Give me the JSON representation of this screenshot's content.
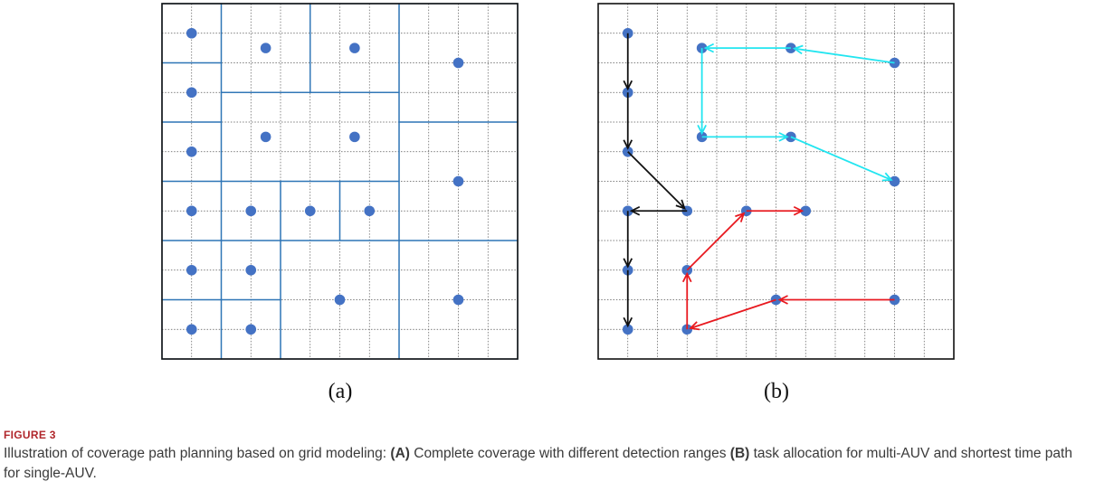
{
  "figure": {
    "panel_a_label": "(a)",
    "panel_b_label": "(b)",
    "fig_number": "FIGURE 3",
    "caption_intro": "Illustration of coverage path planning based on grid modeling: ",
    "caption_a_key": "(A)",
    "caption_a_text": " Complete coverage with different detection ranges ",
    "caption_b_key": "(B)",
    "caption_b_text": " task allocation for multi-AUV and shortest time path for single-AUV."
  },
  "colors": {
    "node": "#4472c4",
    "region_border": "#2e75b6",
    "grid_line": "#555555",
    "path_black": "#111111",
    "path_cyan": "#22e5f0",
    "path_red": "#e8191f"
  },
  "grid": {
    "cols": 12,
    "rows": 12
  },
  "panel_a": {
    "nodes": [
      [
        1,
        1
      ],
      [
        3.5,
        1.5
      ],
      [
        6.5,
        1.5
      ],
      [
        10,
        2
      ],
      [
        1,
        3
      ],
      [
        3.5,
        4.5
      ],
      [
        6.5,
        4.5
      ],
      [
        1,
        5
      ],
      [
        10,
        6
      ],
      [
        1,
        7
      ],
      [
        3,
        7
      ],
      [
        5,
        7
      ],
      [
        7,
        7
      ],
      [
        1,
        9
      ],
      [
        3,
        9
      ],
      [
        6,
        10
      ],
      [
        10,
        10
      ],
      [
        1,
        11
      ],
      [
        3,
        11
      ]
    ],
    "regions": [
      [
        0,
        0,
        2,
        2
      ],
      [
        2,
        0,
        5,
        3
      ],
      [
        5,
        0,
        8,
        3
      ],
      [
        8,
        0,
        12,
        4
      ],
      [
        0,
        2,
        2,
        4
      ],
      [
        2,
        3,
        8,
        6
      ],
      [
        8,
        4,
        12,
        8
      ],
      [
        0,
        4,
        2,
        6
      ],
      [
        0,
        6,
        2,
        8
      ],
      [
        2,
        6,
        4,
        8
      ],
      [
        4,
        6,
        6,
        8
      ],
      [
        6,
        6,
        8,
        8
      ],
      [
        0,
        8,
        2,
        10
      ],
      [
        2,
        8,
        4,
        10
      ],
      [
        0,
        10,
        2,
        12
      ],
      [
        2,
        10,
        4,
        12
      ],
      [
        4,
        8,
        8,
        12
      ],
      [
        8,
        8,
        12,
        12
      ]
    ]
  },
  "panel_b": {
    "paths": [
      {
        "color": "path_black",
        "points": [
          [
            1,
            1
          ],
          [
            1,
            3
          ],
          [
            1,
            5
          ],
          [
            3,
            7
          ],
          [
            1,
            7
          ],
          [
            1,
            9
          ],
          [
            1,
            11
          ]
        ]
      },
      {
        "color": "path_cyan",
        "points": [
          [
            10,
            2
          ],
          [
            6.5,
            1.5
          ],
          [
            3.5,
            1.5
          ],
          [
            3.5,
            4.5
          ],
          [
            6.5,
            4.5
          ],
          [
            10,
            6
          ]
        ]
      },
      {
        "color": "path_red",
        "points": [
          [
            10,
            10
          ],
          [
            6,
            10
          ],
          [
            3,
            11
          ],
          [
            3,
            9
          ],
          [
            5,
            7
          ],
          [
            7,
            7
          ]
        ]
      }
    ]
  }
}
